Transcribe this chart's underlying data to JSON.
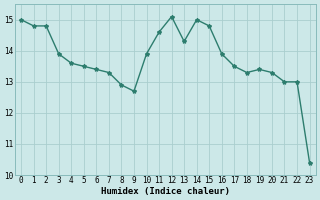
{
  "x": [
    0,
    1,
    2,
    3,
    4,
    5,
    6,
    7,
    8,
    9,
    10,
    11,
    12,
    13,
    14,
    15,
    16,
    17,
    18,
    19,
    20,
    21,
    22,
    23
  ],
  "y": [
    15.0,
    14.8,
    14.8,
    13.9,
    13.6,
    13.5,
    13.4,
    13.3,
    12.9,
    12.7,
    13.9,
    14.6,
    15.1,
    14.3,
    15.0,
    14.8,
    13.9,
    13.5,
    13.3,
    13.4,
    13.3,
    13.0,
    13.0,
    10.4
  ],
  "xlim": [
    -0.5,
    23.5
  ],
  "ylim": [
    10,
    15.5
  ],
  "yticks": [
    10,
    11,
    12,
    13,
    14,
    15
  ],
  "xticks": [
    0,
    1,
    2,
    3,
    4,
    5,
    6,
    7,
    8,
    9,
    10,
    11,
    12,
    13,
    14,
    15,
    16,
    17,
    18,
    19,
    20,
    21,
    22,
    23
  ],
  "xlabel": "Humidex (Indice chaleur)",
  "line_color": "#2d7d6e",
  "marker": "*",
  "marker_size": 3,
  "bg_color": "#cce8e8",
  "grid_color": "#aacece",
  "linewidth": 1.0,
  "tick_fontsize": 5.5,
  "xlabel_fontsize": 6.5,
  "xlabel_fontweight": "bold"
}
